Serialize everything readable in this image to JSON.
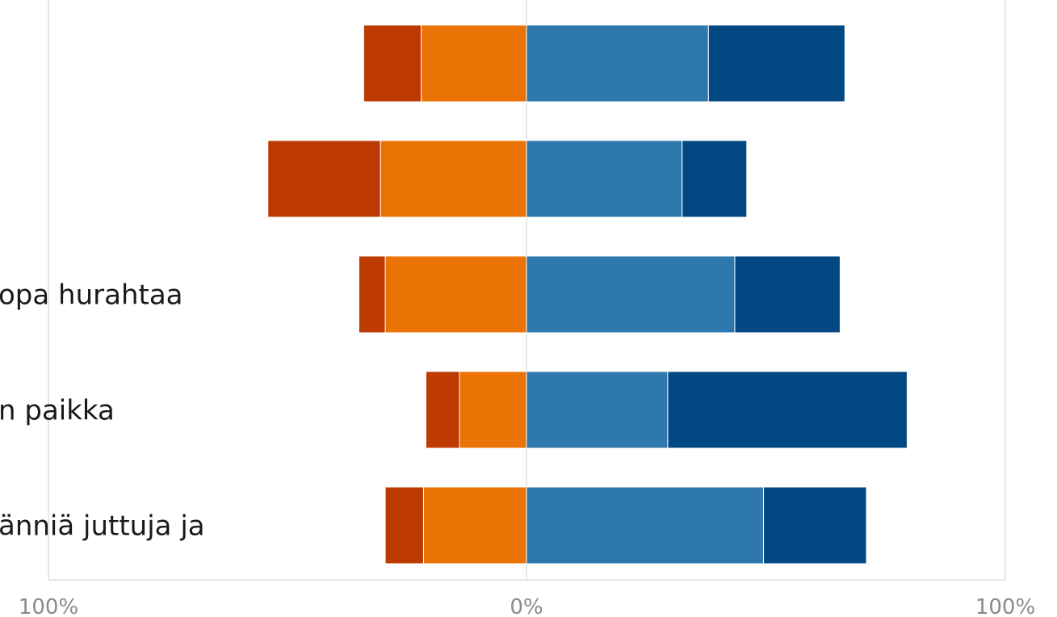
{
  "chart_data": {
    "type": "bar",
    "orientation": "horizontal",
    "stacking": "diverging",
    "categories": [
      "",
      "",
      "...opa hurahtaa",
      "...n paikka",
      "...änniä juttuja ja"
    ],
    "series": [
      {
        "side": "negative",
        "color": "#bd3b00",
        "values": [
          12,
          23.5,
          5.5,
          7,
          8
        ]
      },
      {
        "side": "negative",
        "color": "#eb7205",
        "values": [
          22,
          30.5,
          29.5,
          14,
          21.5
        ]
      },
      {
        "side": "positive",
        "color": "#2f78ad",
        "values": [
          38,
          32.5,
          43.5,
          29.5,
          49.5
        ]
      },
      {
        "side": "positive",
        "color": "#024983",
        "values": [
          28.5,
          13.5,
          22,
          50,
          21.5
        ]
      }
    ],
    "xlim": [
      -100,
      100
    ],
    "x_ticks": [
      "100%",
      "0%",
      "100%"
    ],
    "grid": true,
    "legend": "none"
  }
}
